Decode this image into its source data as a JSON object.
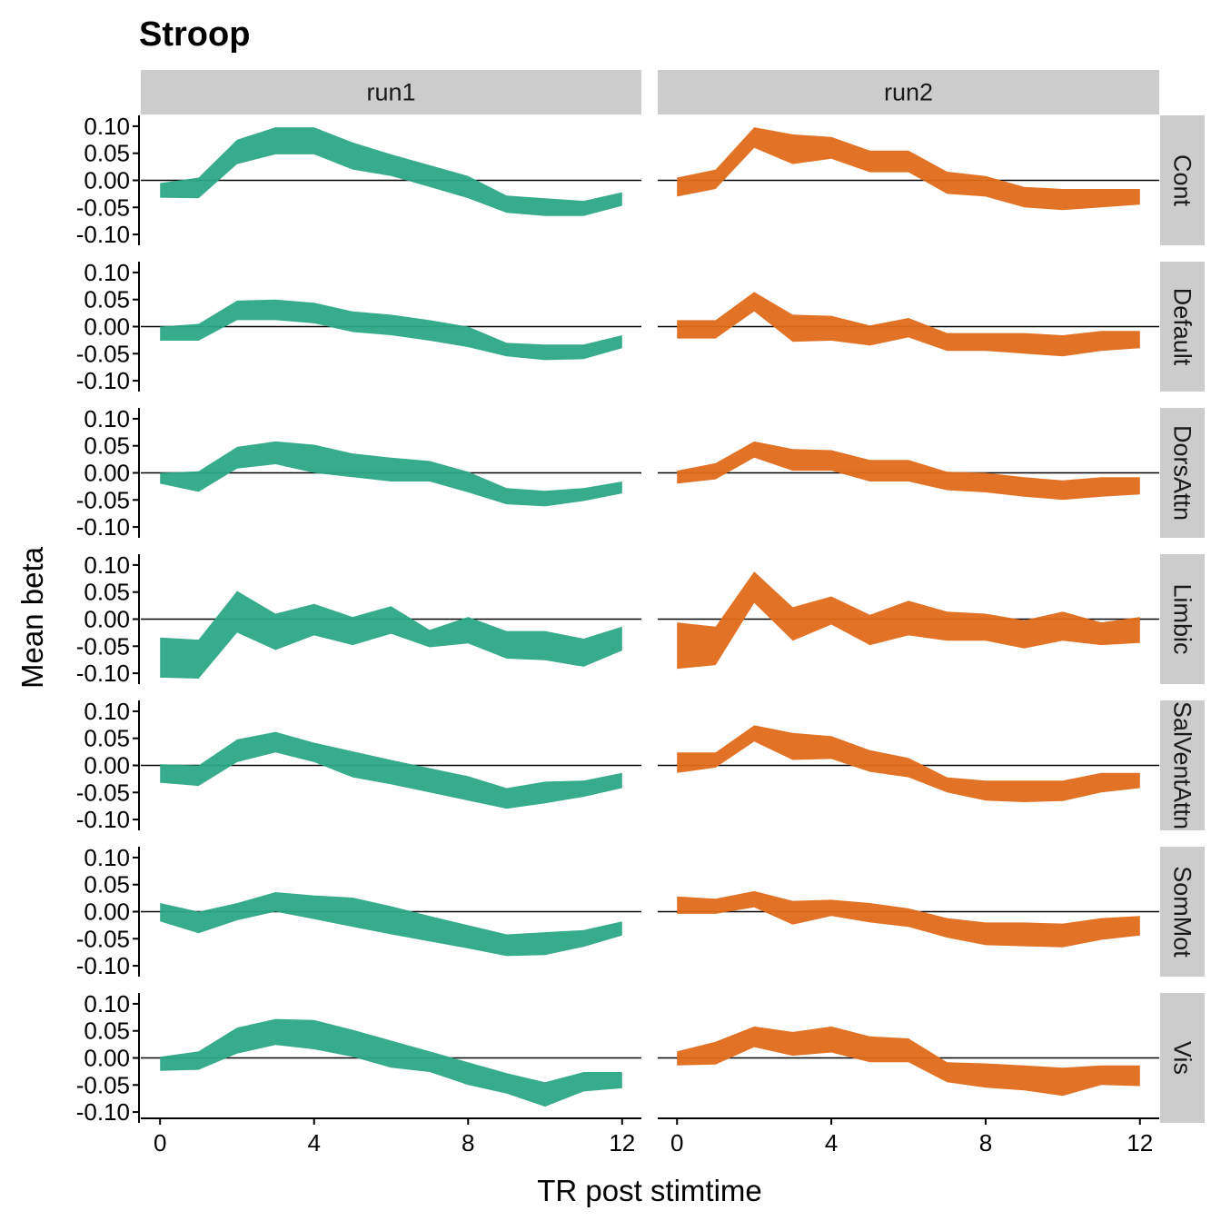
{
  "chart_data": {
    "type": "area",
    "title": "Stroop",
    "xlabel": "TR post stimtime",
    "ylabel": "Mean beta",
    "xlim": [
      -0.5,
      12.5
    ],
    "ylim": [
      -0.12,
      0.12
    ],
    "x_ticks": [
      0,
      4,
      8,
      12
    ],
    "y_ticks": [
      0.1,
      0.05,
      0.0,
      -0.05,
      -0.1
    ],
    "y_tick_labels": [
      "0.10",
      "0.05",
      "0.00",
      "-0.05",
      "-0.10"
    ],
    "zero_reference_line": true,
    "legend": "none",
    "grid": false,
    "columns": [
      "run1",
      "run2"
    ],
    "column_colors": [
      "#2ca886",
      "#e06b1a"
    ],
    "rows": [
      "Cont",
      "Default",
      "DorsAttn",
      "Limbic",
      "SalVentAttn",
      "SomMot",
      "Vis"
    ],
    "x": [
      0,
      1,
      2,
      3,
      4,
      5,
      6,
      7,
      8,
      9,
      10,
      11,
      12
    ],
    "panels": [
      {
        "row": "Cont",
        "column": "run1",
        "upper": [
          -0.005,
          0.005,
          0.075,
          0.098,
          0.098,
          0.07,
          0.048,
          0.028,
          0.008,
          -0.028,
          -0.033,
          -0.038,
          -0.022
        ],
        "lower": [
          -0.032,
          -0.033,
          0.03,
          0.048,
          0.048,
          0.02,
          0.008,
          -0.012,
          -0.033,
          -0.06,
          -0.066,
          -0.066,
          -0.047
        ]
      },
      {
        "row": "Cont",
        "column": "run2",
        "upper": [
          0.005,
          0.02,
          0.098,
          0.085,
          0.08,
          0.055,
          0.055,
          0.016,
          0.008,
          -0.012,
          -0.016,
          -0.016,
          -0.016
        ],
        "lower": [
          -0.03,
          -0.016,
          0.06,
          0.03,
          0.04,
          0.015,
          0.015,
          -0.025,
          -0.03,
          -0.05,
          -0.055,
          -0.05,
          -0.045
        ]
      },
      {
        "row": "Default",
        "column": "run1",
        "upper": [
          0.0,
          0.005,
          0.048,
          0.05,
          0.044,
          0.028,
          0.022,
          0.012,
          0.0,
          -0.03,
          -0.033,
          -0.033,
          -0.016
        ],
        "lower": [
          -0.026,
          -0.026,
          0.012,
          0.012,
          0.006,
          -0.01,
          -0.016,
          -0.026,
          -0.038,
          -0.055,
          -0.062,
          -0.06,
          -0.04
        ]
      },
      {
        "row": "Default",
        "column": "run2",
        "upper": [
          0.012,
          0.012,
          0.064,
          0.022,
          0.02,
          0.002,
          0.016,
          -0.012,
          -0.012,
          -0.012,
          -0.016,
          -0.008,
          -0.008
        ],
        "lower": [
          -0.022,
          -0.022,
          0.028,
          -0.028,
          -0.026,
          -0.035,
          -0.02,
          -0.045,
          -0.045,
          -0.05,
          -0.055,
          -0.045,
          -0.04
        ]
      },
      {
        "row": "DorsAttn",
        "column": "run1",
        "upper": [
          0.0,
          0.003,
          0.048,
          0.058,
          0.052,
          0.036,
          0.028,
          0.022,
          0.002,
          -0.028,
          -0.033,
          -0.028,
          -0.016
        ],
        "lower": [
          -0.02,
          -0.035,
          0.008,
          0.016,
          0.0,
          -0.008,
          -0.016,
          -0.016,
          -0.036,
          -0.058,
          -0.062,
          -0.052,
          -0.038
        ]
      },
      {
        "row": "DorsAttn",
        "column": "run2",
        "upper": [
          0.004,
          0.018,
          0.058,
          0.044,
          0.042,
          0.024,
          0.024,
          0.002,
          0.0,
          -0.008,
          -0.014,
          -0.008,
          -0.008
        ],
        "lower": [
          -0.02,
          -0.012,
          0.028,
          0.004,
          0.004,
          -0.016,
          -0.016,
          -0.032,
          -0.036,
          -0.044,
          -0.05,
          -0.044,
          -0.04
        ]
      },
      {
        "row": "Limbic",
        "column": "run1",
        "upper": [
          -0.034,
          -0.038,
          0.052,
          0.01,
          0.028,
          0.004,
          0.024,
          -0.02,
          0.004,
          -0.022,
          -0.022,
          -0.036,
          -0.014
        ],
        "lower": [
          -0.108,
          -0.11,
          -0.025,
          -0.057,
          -0.03,
          -0.048,
          -0.027,
          -0.052,
          -0.045,
          -0.073,
          -0.076,
          -0.088,
          -0.058
        ]
      },
      {
        "row": "Limbic",
        "column": "run2",
        "upper": [
          -0.006,
          -0.014,
          0.088,
          0.022,
          0.042,
          0.008,
          0.034,
          0.014,
          0.01,
          -0.002,
          0.014,
          -0.006,
          0.004
        ],
        "lower": [
          -0.092,
          -0.085,
          0.03,
          -0.04,
          -0.01,
          -0.048,
          -0.03,
          -0.04,
          -0.04,
          -0.054,
          -0.04,
          -0.048,
          -0.044
        ]
      },
      {
        "row": "SalVentAttn",
        "column": "run1",
        "upper": [
          0.002,
          0.0,
          0.048,
          0.062,
          0.042,
          0.026,
          0.01,
          -0.005,
          -0.02,
          -0.042,
          -0.03,
          -0.028,
          -0.014
        ],
        "lower": [
          -0.032,
          -0.038,
          0.006,
          0.024,
          0.006,
          -0.022,
          -0.035,
          -0.05,
          -0.065,
          -0.08,
          -0.07,
          -0.058,
          -0.042
        ]
      },
      {
        "row": "SalVentAttn",
        "column": "run2",
        "upper": [
          0.024,
          0.024,
          0.074,
          0.06,
          0.054,
          0.028,
          0.014,
          -0.022,
          -0.028,
          -0.028,
          -0.028,
          -0.014,
          -0.014
        ],
        "lower": [
          -0.014,
          -0.004,
          0.044,
          0.01,
          0.012,
          -0.012,
          -0.022,
          -0.05,
          -0.065,
          -0.068,
          -0.066,
          -0.05,
          -0.042
        ]
      },
      {
        "row": "SomMot",
        "column": "run1",
        "upper": [
          0.016,
          0.0,
          0.016,
          0.036,
          0.03,
          0.026,
          0.01,
          -0.008,
          -0.025,
          -0.042,
          -0.038,
          -0.034,
          -0.018
        ],
        "lower": [
          -0.018,
          -0.04,
          -0.016,
          0.0,
          -0.014,
          -0.028,
          -0.042,
          -0.055,
          -0.068,
          -0.082,
          -0.08,
          -0.065,
          -0.044
        ]
      },
      {
        "row": "SomMot",
        "column": "run2",
        "upper": [
          0.028,
          0.024,
          0.038,
          0.02,
          0.022,
          0.016,
          0.006,
          -0.012,
          -0.02,
          -0.02,
          -0.022,
          -0.012,
          -0.008
        ],
        "lower": [
          -0.004,
          -0.004,
          0.008,
          -0.024,
          -0.008,
          -0.02,
          -0.028,
          -0.048,
          -0.062,
          -0.064,
          -0.066,
          -0.052,
          -0.044
        ]
      },
      {
        "row": "Vis",
        "column": "run1",
        "upper": [
          0.002,
          0.012,
          0.056,
          0.072,
          0.07,
          0.052,
          0.032,
          0.012,
          -0.008,
          -0.028,
          -0.045,
          -0.026,
          -0.026
        ],
        "lower": [
          -0.024,
          -0.022,
          0.008,
          0.024,
          0.016,
          0.002,
          -0.018,
          -0.026,
          -0.05,
          -0.066,
          -0.09,
          -0.062,
          -0.056
        ]
      },
      {
        "row": "Vis",
        "column": "run2",
        "upper": [
          0.012,
          0.03,
          0.058,
          0.048,
          0.058,
          0.04,
          0.036,
          -0.008,
          -0.01,
          -0.014,
          -0.018,
          -0.014,
          -0.014
        ],
        "lower": [
          -0.014,
          -0.012,
          0.02,
          0.004,
          0.01,
          -0.008,
          -0.008,
          -0.045,
          -0.055,
          -0.06,
          -0.07,
          -0.05,
          -0.052
        ]
      }
    ]
  }
}
